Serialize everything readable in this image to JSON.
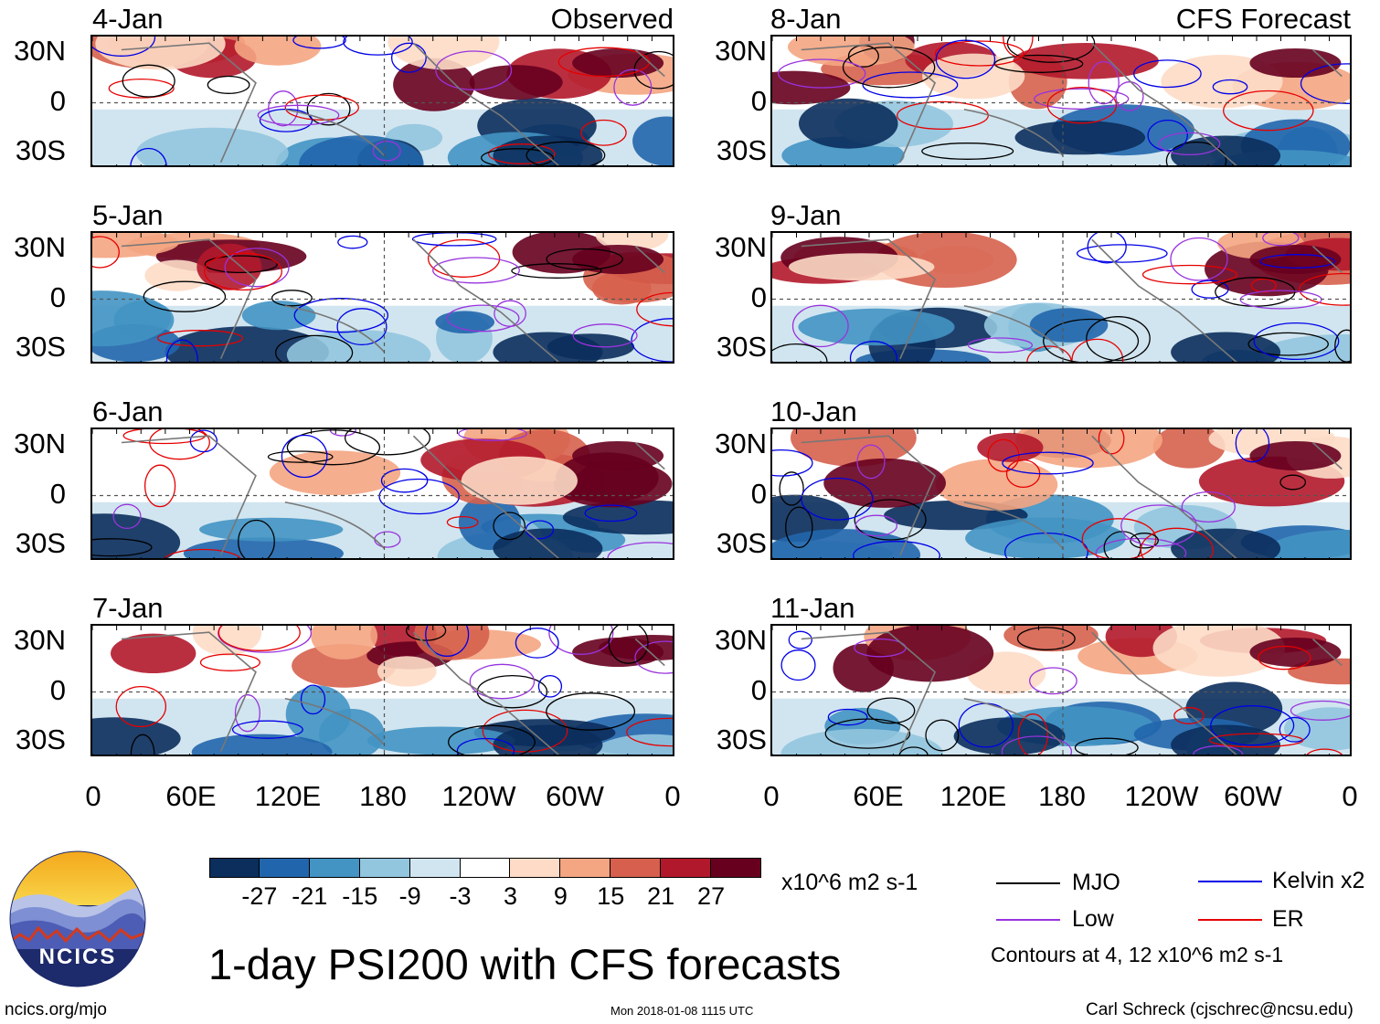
{
  "panels": [
    {
      "date": "4-Jan",
      "corner": "Observed"
    },
    {
      "date": "5-Jan",
      "corner": ""
    },
    {
      "date": "6-Jan",
      "corner": ""
    },
    {
      "date": "7-Jan",
      "corner": ""
    },
    {
      "date": "8-Jan",
      "corner": "CFS Forecast"
    },
    {
      "date": "9-Jan",
      "corner": ""
    },
    {
      "date": "10-Jan",
      "corner": ""
    },
    {
      "date": "11-Jan",
      "corner": ""
    }
  ],
  "lat_labels": [
    "30N",
    "0",
    "30S"
  ],
  "lon_labels": [
    "0",
    "60E",
    "120E",
    "180",
    "120W",
    "60W",
    "0"
  ],
  "colorbar": {
    "colors": [
      "#0b2e5c",
      "#2166ac",
      "#4393c3",
      "#92c5de",
      "#d1e5f0",
      "#ffffff",
      "#fddbc7",
      "#f4a582",
      "#d6604d",
      "#b2182b",
      "#67001f"
    ],
    "ticks": [
      "-27",
      "-21",
      "-15",
      "-9",
      "-3",
      "3",
      "9",
      "15",
      "21",
      "27"
    ],
    "units": "x10^6 m2 s-1"
  },
  "legend": {
    "items": [
      {
        "label": "MJO",
        "color": "#000000"
      },
      {
        "label": "Kelvin x2",
        "color": "#0000e6"
      },
      {
        "label": "Low",
        "color": "#9933dd"
      },
      {
        "label": "ER",
        "color": "#e60000"
      }
    ],
    "contour_note": "Contours at 4, 12 x10^6 m2 s-1"
  },
  "logo": {
    "text": "NCICS"
  },
  "title": "1-day PSI200 with CFS forecasts",
  "footer": {
    "site": "ncics.org/mjo",
    "timestamp": "Mon 2018-01-08 1115 UTC",
    "credit": "Carl Schreck (cjschrec@ncsu.edu)"
  }
}
